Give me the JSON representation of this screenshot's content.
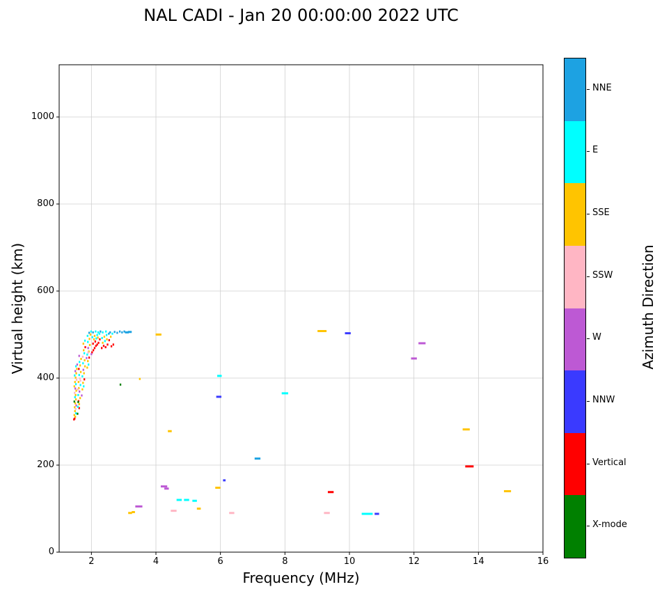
{
  "title": "NAL CADI - Jan 20 00:00:00 2022 UTC",
  "chart_data": {
    "type": "scatter",
    "title": "NAL CADI - Jan 20 00:00:00 2022 UTC",
    "xlabel": "Frequency (MHz)",
    "ylabel": "Virtual height (km)",
    "xlim": [
      1,
      16
    ],
    "ylim": [
      0,
      1120
    ],
    "xticks": [
      2,
      4,
      6,
      8,
      10,
      12,
      14,
      16
    ],
    "yticks": [
      0,
      200,
      400,
      600,
      800,
      1000
    ],
    "grid": true,
    "legend": {
      "title": "Azimuth Direction",
      "position": "right-colorbar",
      "entries": [
        {
          "label": "NNE",
          "color": "#1da2e2"
        },
        {
          "label": "E",
          "color": "#00ffff"
        },
        {
          "label": "SSE",
          "color": "#ffc400"
        },
        {
          "label": "SSW",
          "color": "#ffb6c4"
        },
        {
          "label": "W",
          "color": "#bd59d4"
        },
        {
          "label": "NNW",
          "color": "#3a3aff"
        },
        {
          "label": "Vertical",
          "color": "#ff0000"
        },
        {
          "label": "X-mode",
          "color": "#008000"
        }
      ]
    },
    "points_format": "[frequency_MHz, virtual_height_km, direction_index_into_legend_entries, optional_segment_width_MHz]",
    "points": [
      [
        1.48,
        307,
        6
      ],
      [
        1.5,
        311,
        2
      ],
      [
        1.47,
        315,
        2
      ],
      [
        1.52,
        319,
        1
      ],
      [
        1.49,
        324,
        2
      ],
      [
        1.51,
        329,
        3
      ],
      [
        1.48,
        333,
        2
      ],
      [
        1.53,
        337,
        4
      ],
      [
        1.5,
        342,
        2
      ],
      [
        1.47,
        346,
        7
      ],
      [
        1.52,
        351,
        2
      ],
      [
        1.49,
        356,
        1
      ],
      [
        1.51,
        361,
        2
      ],
      [
        1.48,
        366,
        3
      ],
      [
        1.53,
        371,
        2
      ],
      [
        1.5,
        376,
        4
      ],
      [
        1.47,
        381,
        2
      ],
      [
        1.52,
        386,
        1
      ],
      [
        1.49,
        391,
        2
      ],
      [
        1.54,
        396,
        3
      ],
      [
        1.51,
        401,
        2
      ],
      [
        1.48,
        406,
        1
      ],
      [
        1.53,
        411,
        2
      ],
      [
        1.5,
        416,
        4
      ],
      [
        1.55,
        421,
        2
      ],
      [
        1.52,
        427,
        1
      ],
      [
        1.46,
        305,
        6
      ],
      [
        1.62,
        331,
        6
      ],
      [
        1.58,
        334,
        1
      ],
      [
        1.62,
        340,
        2
      ],
      [
        1.6,
        347,
        6
      ],
      [
        1.65,
        354,
        2
      ],
      [
        1.59,
        361,
        1
      ],
      [
        1.63,
        369,
        4
      ],
      [
        1.61,
        377,
        2
      ],
      [
        1.66,
        384,
        1
      ],
      [
        1.6,
        391,
        2
      ],
      [
        1.64,
        399,
        3
      ],
      [
        1.62,
        407,
        1
      ],
      [
        1.67,
        414,
        2
      ],
      [
        1.61,
        421,
        6
      ],
      [
        1.65,
        429,
        2
      ],
      [
        1.63,
        437,
        1
      ],
      [
        1.68,
        444,
        2
      ],
      [
        1.62,
        451,
        4
      ],
      [
        1.57,
        318,
        7
      ],
      [
        1.59,
        345,
        7
      ],
      [
        1.56,
        431,
        4
      ],
      [
        1.58,
        374,
        3
      ],
      [
        1.66,
        394,
        3
      ],
      [
        1.72,
        374,
        2
      ],
      [
        1.76,
        381,
        1
      ],
      [
        1.74,
        389,
        2
      ],
      [
        1.78,
        397,
        6
      ],
      [
        1.72,
        404,
        1
      ],
      [
        1.77,
        411,
        2
      ],
      [
        1.75,
        419,
        4
      ],
      [
        1.8,
        427,
        2
      ],
      [
        1.74,
        434,
        1
      ],
      [
        1.79,
        441,
        2
      ],
      [
        1.73,
        449,
        3
      ],
      [
        1.78,
        457,
        1
      ],
      [
        1.76,
        464,
        2
      ],
      [
        1.81,
        471,
        6
      ],
      [
        1.75,
        479,
        2
      ],
      [
        1.8,
        486,
        1
      ],
      [
        1.7,
        360,
        4
      ],
      [
        1.87,
        424,
        2
      ],
      [
        1.91,
        431,
        1
      ],
      [
        1.89,
        439,
        2
      ],
      [
        1.93,
        447,
        6
      ],
      [
        1.87,
        454,
        1
      ],
      [
        1.92,
        461,
        2
      ],
      [
        1.9,
        469,
        4
      ],
      [
        1.95,
        476,
        2
      ],
      [
        1.89,
        483,
        1
      ],
      [
        1.94,
        490,
        2
      ],
      [
        1.88,
        497,
        1
      ],
      [
        1.93,
        504,
        0
      ],
      [
        1.97,
        500,
        2
      ],
      [
        1.99,
        507,
        1
      ],
      [
        1.85,
        446,
        4
      ],
      [
        1.9,
        459,
        3
      ],
      [
        2.02,
        459,
        6
      ],
      [
        2.06,
        464,
        6
      ],
      [
        2.1,
        469,
        6
      ],
      [
        2.14,
        474,
        6
      ],
      [
        2.05,
        479,
        6
      ],
      [
        2.12,
        484,
        6
      ],
      [
        2.18,
        477,
        6
      ],
      [
        2.22,
        481,
        6
      ],
      [
        2.08,
        489,
        2
      ],
      [
        2.15,
        491,
        1
      ],
      [
        2.03,
        494,
        1
      ],
      [
        2.1,
        497,
        2
      ],
      [
        2.18,
        499,
        1
      ],
      [
        2.25,
        502,
        1
      ],
      [
        2.05,
        505,
        0
      ],
      [
        2.13,
        507,
        1
      ],
      [
        2.21,
        505,
        1
      ],
      [
        2.28,
        507,
        0
      ],
      [
        2.26,
        489,
        6
      ],
      [
        2.2,
        493,
        2
      ],
      [
        2.0,
        455,
        4
      ],
      [
        2.32,
        469,
        6
      ],
      [
        2.38,
        474,
        6
      ],
      [
        2.44,
        471,
        6
      ],
      [
        2.5,
        477,
        6
      ],
      [
        2.35,
        481,
        2
      ],
      [
        2.42,
        485,
        1
      ],
      [
        2.48,
        489,
        2
      ],
      [
        2.55,
        487,
        6
      ],
      [
        2.33,
        492,
        1
      ],
      [
        2.4,
        495,
        2
      ],
      [
        2.47,
        499,
        1
      ],
      [
        2.54,
        502,
        0
      ],
      [
        2.35,
        505,
        1
      ],
      [
        2.45,
        507,
        1
      ],
      [
        2.58,
        505,
        0
      ],
      [
        2.62,
        473,
        6
      ],
      [
        2.68,
        477,
        6
      ],
      [
        2.65,
        502,
        1
      ],
      [
        2.6,
        495,
        2
      ],
      [
        2.72,
        506,
        0
      ],
      [
        2.8,
        504,
        0
      ],
      [
        2.88,
        507,
        0
      ],
      [
        2.95,
        505,
        0
      ],
      [
        3.02,
        507,
        0
      ],
      [
        3.1,
        505,
        0,
        0.12
      ],
      [
        3.19,
        506,
        0,
        0.12
      ],
      [
        2.9,
        385,
        7
      ],
      [
        3.5,
        398,
        2
      ],
      [
        3.2,
        90,
        2,
        0.12
      ],
      [
        3.3,
        92,
        2,
        0.1
      ],
      [
        3.47,
        105,
        4,
        0.22
      ],
      [
        4.08,
        500,
        2,
        0.18
      ],
      [
        4.25,
        151,
        4,
        0.2
      ],
      [
        4.33,
        146,
        4,
        0.14
      ],
      [
        4.43,
        278,
        2,
        0.12
      ],
      [
        4.55,
        95,
        3,
        0.18
      ],
      [
        4.72,
        120,
        1,
        0.16
      ],
      [
        4.95,
        120,
        1,
        0.16
      ],
      [
        5.2,
        118,
        1,
        0.14
      ],
      [
        5.33,
        100,
        2,
        0.12
      ],
      [
        5.92,
        148,
        2,
        0.16
      ],
      [
        5.97,
        405,
        1,
        0.14
      ],
      [
        5.95,
        357,
        5,
        0.16
      ],
      [
        6.12,
        165,
        5,
        0.08
      ],
      [
        6.35,
        90,
        3,
        0.16
      ],
      [
        7.15,
        215,
        0,
        0.18
      ],
      [
        8.0,
        365,
        1,
        0.2
      ],
      [
        9.15,
        508,
        2,
        0.28
      ],
      [
        9.3,
        90,
        3,
        0.18
      ],
      [
        9.42,
        138,
        6,
        0.18
      ],
      [
        9.95,
        503,
        5,
        0.18
      ],
      [
        10.55,
        88,
        1,
        0.34
      ],
      [
        10.85,
        88,
        5,
        0.14
      ],
      [
        12.0,
        445,
        4,
        0.18
      ],
      [
        12.25,
        480,
        4,
        0.22
      ],
      [
        13.62,
        282,
        2,
        0.22
      ],
      [
        13.72,
        197,
        6,
        0.26
      ],
      [
        14.9,
        140,
        2,
        0.22
      ]
    ]
  }
}
